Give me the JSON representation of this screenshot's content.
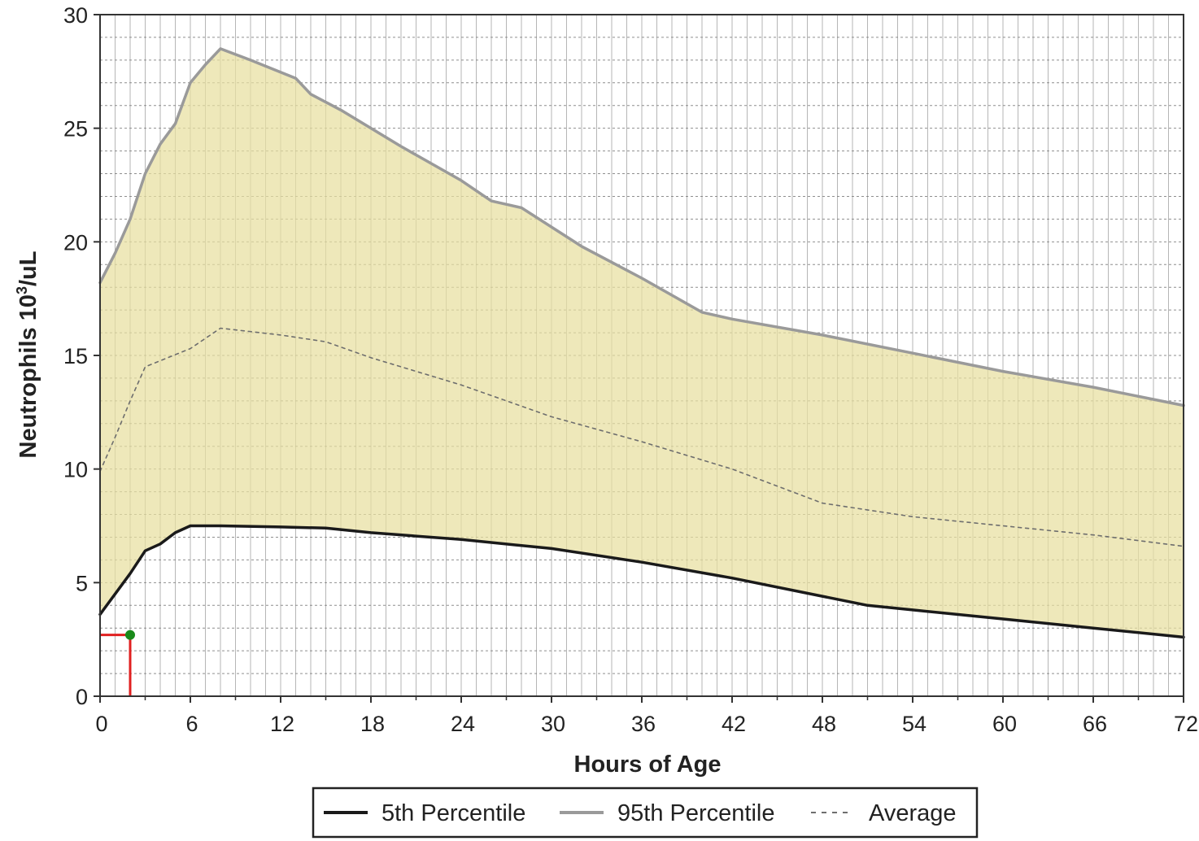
{
  "chart_data": {
    "type": "area",
    "xlabel": "Hours of Age",
    "ylabel_main": "Neutrophils 10",
    "ylabel_sup": "3",
    "ylabel_tail": "/uL",
    "xlim": [
      0,
      72
    ],
    "ylim": [
      0,
      30
    ],
    "x_ticks": [
      "0",
      "6",
      "12",
      "18",
      "24",
      "30",
      "36",
      "42",
      "48",
      "54",
      "60",
      "66",
      "72"
    ],
    "y_ticks": [
      "0",
      "5",
      "10",
      "15",
      "20",
      "25",
      "30"
    ],
    "x_minor_step": 1,
    "y_minor_step": 1,
    "grid": true,
    "legend_position": "bottom",
    "fill_color": "#e8dfa0",
    "series": [
      {
        "name": "5th Percentile",
        "color": "#1a1a1a",
        "style": "solid",
        "x": [
          0,
          1,
          2,
          3,
          4,
          5,
          6,
          8,
          12,
          15,
          18,
          24,
          30,
          36,
          42,
          48,
          51,
          54,
          60,
          66,
          72
        ],
        "y": [
          3.6,
          4.5,
          5.4,
          6.4,
          6.7,
          7.2,
          7.5,
          7.5,
          7.45,
          7.4,
          7.2,
          6.9,
          6.5,
          5.9,
          5.2,
          4.4,
          4.0,
          3.8,
          3.4,
          3.0,
          2.6
        ]
      },
      {
        "name": "95th Percentile",
        "color": "#9a9a9a",
        "style": "solid",
        "x": [
          0,
          1,
          2,
          3,
          4,
          5,
          6,
          7,
          8,
          10,
          13,
          14,
          16,
          20,
          24,
          26,
          28,
          32,
          36,
          40,
          42,
          48,
          54,
          60,
          66,
          72
        ],
        "y": [
          18.2,
          19.5,
          21.0,
          23.0,
          24.3,
          25.2,
          27.0,
          27.8,
          28.5,
          28.0,
          27.2,
          26.5,
          25.8,
          24.2,
          22.7,
          21.8,
          21.5,
          19.8,
          18.4,
          16.9,
          16.6,
          15.9,
          15.1,
          14.3,
          13.6,
          12.8
        ]
      },
      {
        "name": "Average",
        "color": "#6e6e6e",
        "style": "dashed",
        "x": [
          0,
          1,
          2,
          3,
          6,
          8,
          12,
          15,
          18,
          24,
          30,
          36,
          42,
          48,
          54,
          60,
          66,
          72
        ],
        "y": [
          9.9,
          11.4,
          13.0,
          14.5,
          15.3,
          16.2,
          15.9,
          15.6,
          14.9,
          13.7,
          12.3,
          11.2,
          10.0,
          8.5,
          7.9,
          7.5,
          7.1,
          6.6
        ]
      }
    ],
    "marker": {
      "x": 2,
      "y": 2.7,
      "color": "#1a8a1a",
      "guide_color": "#e02020"
    }
  }
}
